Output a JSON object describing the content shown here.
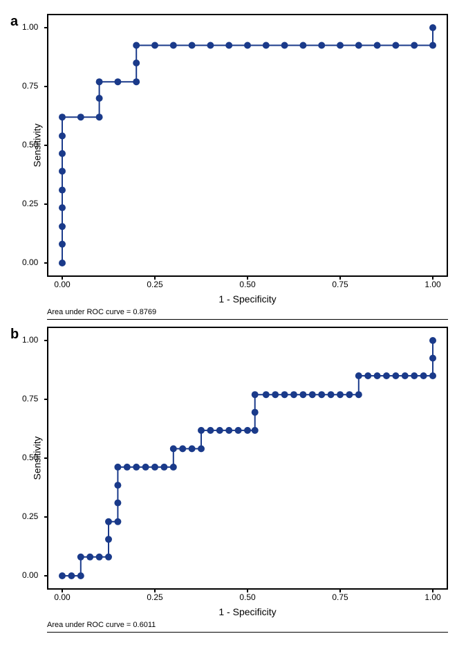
{
  "panel_a": {
    "label": "a",
    "type": "roc_curve",
    "xlabel": "1 - Specificity",
    "ylabel": "Sensitivity",
    "caption": "Area under ROC curve = 0.8769",
    "xlim": [
      0.0,
      1.0
    ],
    "ylim": [
      0.0,
      1.0
    ],
    "xticks": [
      0.0,
      0.25,
      0.5,
      0.75,
      1.0
    ],
    "yticks": [
      0.0,
      0.25,
      0.5,
      0.75,
      1.0
    ],
    "xtick_labels": [
      "0.00",
      "0.25",
      "0.50",
      "0.75",
      "1.00"
    ],
    "ytick_labels": [
      "0.00",
      "0.25",
      "0.50",
      "0.75",
      "1.00"
    ],
    "line_color": "#1a3a8a",
    "marker_color": "#1a3a8a",
    "marker_size": 5,
    "line_width": 2,
    "background_color": "#ffffff",
    "border_color": "#000000",
    "label_fontsize": 14,
    "tick_fontsize": 12,
    "panel_label_fontsize": 20,
    "caption_fontsize": 11,
    "points": [
      [
        0.0,
        0.0
      ],
      [
        0.0,
        0.08
      ],
      [
        0.0,
        0.155
      ],
      [
        0.0,
        0.235
      ],
      [
        0.0,
        0.31
      ],
      [
        0.0,
        0.39
      ],
      [
        0.0,
        0.465
      ],
      [
        0.0,
        0.54
      ],
      [
        0.0,
        0.62
      ],
      [
        0.05,
        0.62
      ],
      [
        0.1,
        0.62
      ],
      [
        0.1,
        0.7
      ],
      [
        0.1,
        0.77
      ],
      [
        0.15,
        0.77
      ],
      [
        0.2,
        0.77
      ],
      [
        0.2,
        0.85
      ],
      [
        0.2,
        0.925
      ],
      [
        0.25,
        0.925
      ],
      [
        0.3,
        0.925
      ],
      [
        0.35,
        0.925
      ],
      [
        0.4,
        0.925
      ],
      [
        0.45,
        0.925
      ],
      [
        0.5,
        0.925
      ],
      [
        0.55,
        0.925
      ],
      [
        0.6,
        0.925
      ],
      [
        0.65,
        0.925
      ],
      [
        0.7,
        0.925
      ],
      [
        0.75,
        0.925
      ],
      [
        0.8,
        0.925
      ],
      [
        0.85,
        0.925
      ],
      [
        0.9,
        0.925
      ],
      [
        0.95,
        0.925
      ],
      [
        1.0,
        0.925
      ],
      [
        1.0,
        1.0
      ]
    ]
  },
  "panel_b": {
    "label": "b",
    "type": "roc_curve",
    "xlabel": "1 - Specificity",
    "ylabel": "Sensitivity",
    "caption": "Area under ROC curve = 0.6011",
    "xlim": [
      0.0,
      1.0
    ],
    "ylim": [
      0.0,
      1.0
    ],
    "xticks": [
      0.0,
      0.25,
      0.5,
      0.75,
      1.0
    ],
    "yticks": [
      0.0,
      0.25,
      0.5,
      0.75,
      1.0
    ],
    "xtick_labels": [
      "0.00",
      "0.25",
      "0.50",
      "0.75",
      "1.00"
    ],
    "ytick_labels": [
      "0.00",
      "0.25",
      "0.50",
      "0.75",
      "1.00"
    ],
    "line_color": "#1a3a8a",
    "marker_color": "#1a3a8a",
    "marker_size": 5,
    "line_width": 2,
    "background_color": "#ffffff",
    "border_color": "#000000",
    "label_fontsize": 14,
    "tick_fontsize": 12,
    "panel_label_fontsize": 20,
    "caption_fontsize": 11,
    "points": [
      [
        0.0,
        0.0
      ],
      [
        0.025,
        0.0
      ],
      [
        0.05,
        0.0
      ],
      [
        0.05,
        0.08
      ],
      [
        0.075,
        0.08
      ],
      [
        0.1,
        0.08
      ],
      [
        0.125,
        0.08
      ],
      [
        0.125,
        0.155
      ],
      [
        0.125,
        0.23
      ],
      [
        0.15,
        0.23
      ],
      [
        0.15,
        0.31
      ],
      [
        0.15,
        0.385
      ],
      [
        0.15,
        0.462
      ],
      [
        0.175,
        0.462
      ],
      [
        0.2,
        0.462
      ],
      [
        0.225,
        0.462
      ],
      [
        0.25,
        0.462
      ],
      [
        0.275,
        0.462
      ],
      [
        0.3,
        0.462
      ],
      [
        0.3,
        0.54
      ],
      [
        0.325,
        0.54
      ],
      [
        0.35,
        0.54
      ],
      [
        0.375,
        0.54
      ],
      [
        0.375,
        0.618
      ],
      [
        0.4,
        0.618
      ],
      [
        0.425,
        0.618
      ],
      [
        0.45,
        0.618
      ],
      [
        0.475,
        0.618
      ],
      [
        0.5,
        0.618
      ],
      [
        0.52,
        0.618
      ],
      [
        0.52,
        0.695
      ],
      [
        0.52,
        0.77
      ],
      [
        0.55,
        0.77
      ],
      [
        0.575,
        0.77
      ],
      [
        0.6,
        0.77
      ],
      [
        0.625,
        0.77
      ],
      [
        0.65,
        0.77
      ],
      [
        0.675,
        0.77
      ],
      [
        0.7,
        0.77
      ],
      [
        0.725,
        0.77
      ],
      [
        0.75,
        0.77
      ],
      [
        0.775,
        0.77
      ],
      [
        0.8,
        0.77
      ],
      [
        0.8,
        0.85
      ],
      [
        0.825,
        0.85
      ],
      [
        0.85,
        0.85
      ],
      [
        0.875,
        0.85
      ],
      [
        0.9,
        0.85
      ],
      [
        0.925,
        0.85
      ],
      [
        0.95,
        0.85
      ],
      [
        0.975,
        0.85
      ],
      [
        1.0,
        0.85
      ],
      [
        1.0,
        0.925
      ],
      [
        1.0,
        1.0
      ]
    ]
  }
}
